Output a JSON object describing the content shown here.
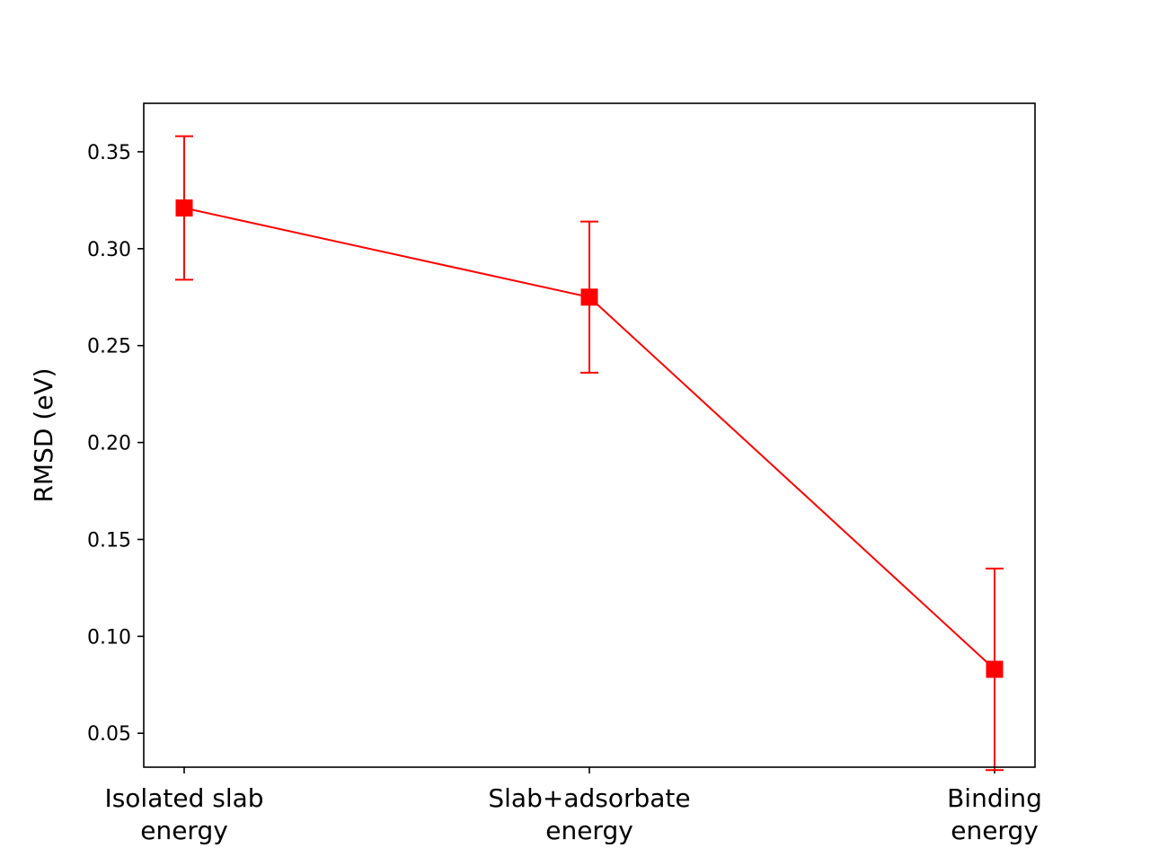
{
  "chart_data": {
    "type": "line",
    "title": "",
    "xlabel": "",
    "ylabel": "RMSD (eV)",
    "categories": [
      [
        "Isolated slab",
        "energy"
      ],
      [
        "Slab+adsorbate",
        "energy"
      ],
      [
        "Binding",
        "energy"
      ]
    ],
    "y_ticks": [
      "0.05",
      "0.10",
      "0.15",
      "0.20",
      "0.25",
      "0.30",
      "0.35"
    ],
    "ylim": [
      0.0325,
      0.375
    ],
    "grid": false,
    "legend": "none",
    "series": [
      {
        "values": [
          0.321,
          0.275,
          0.083
        ],
        "errors": [
          0.037,
          0.039,
          0.052
        ],
        "marker": "square",
        "color": "#ff0000"
      }
    ]
  }
}
